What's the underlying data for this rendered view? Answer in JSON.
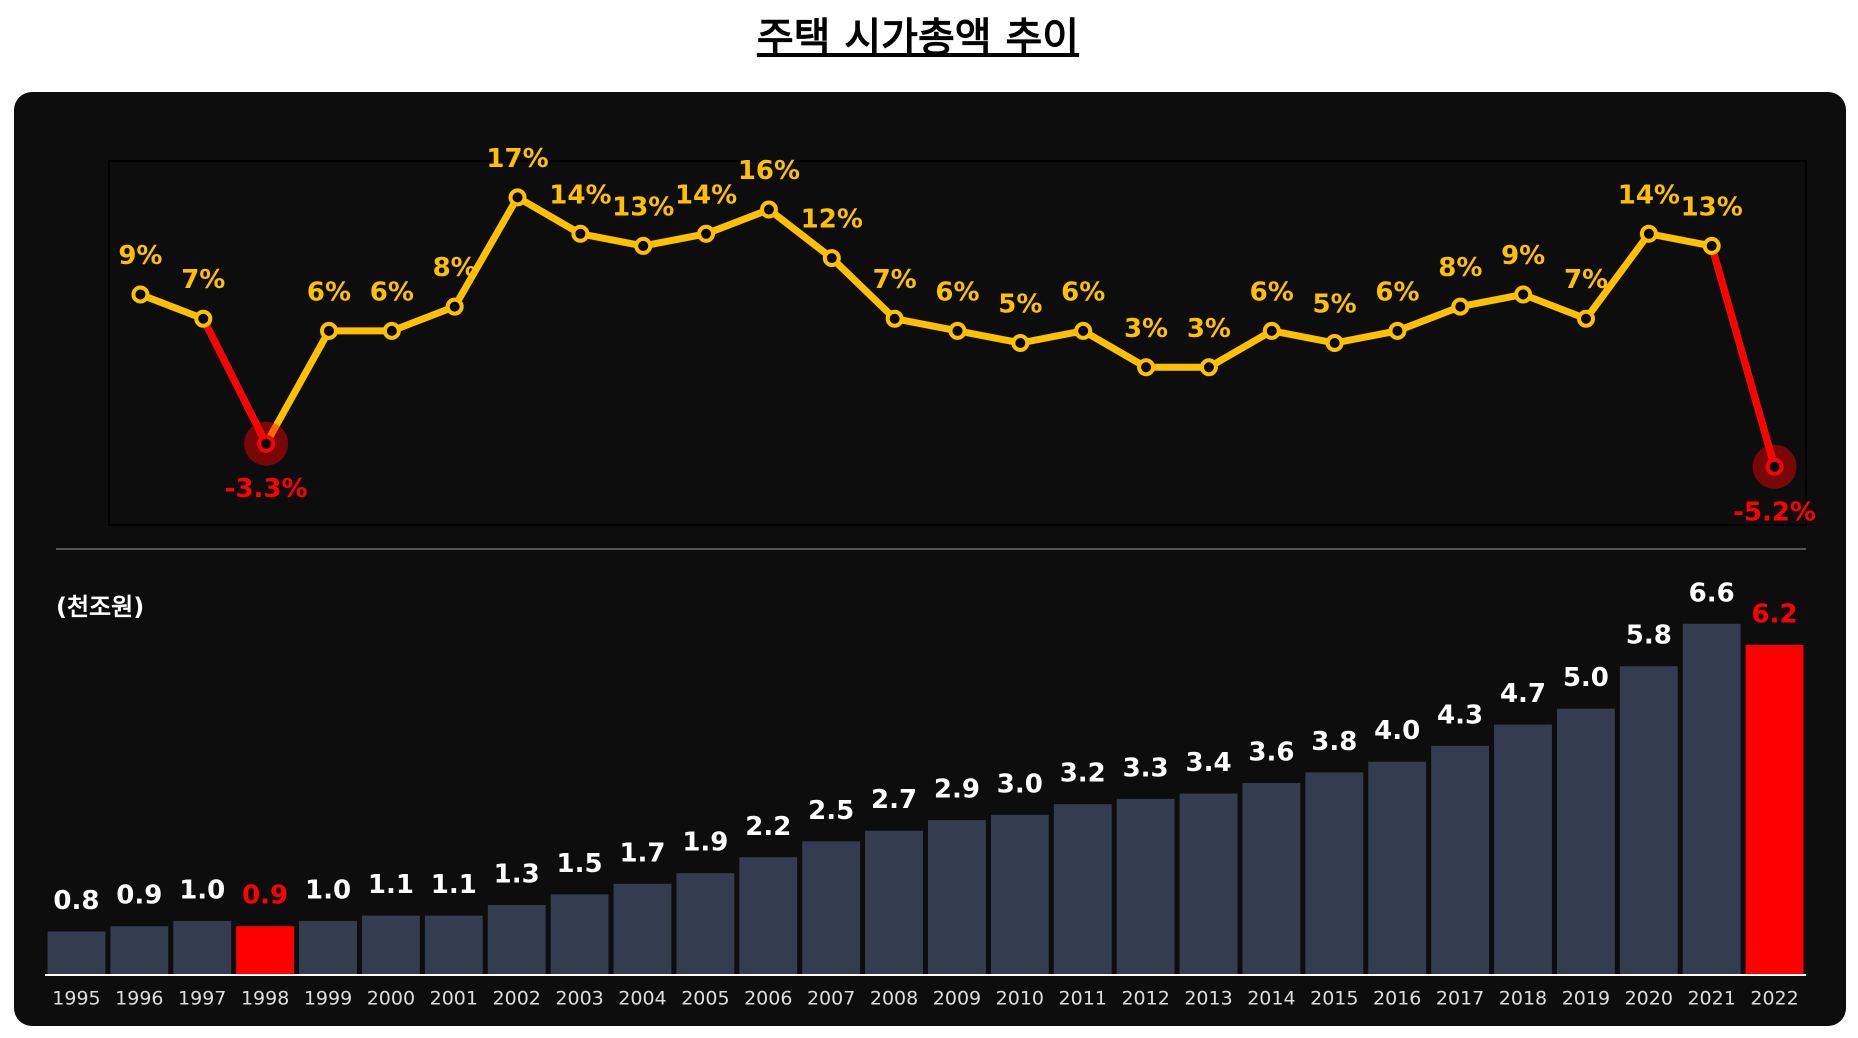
{
  "title": "주택 시가총액 추이",
  "chart_data": [
    {
      "type": "line",
      "values": [
        9,
        7,
        -3.3,
        6,
        6,
        8,
        17,
        14,
        13,
        14,
        16,
        12,
        7,
        6,
        5,
        6,
        3,
        3,
        6,
        5,
        6,
        8,
        9,
        7,
        14,
        13,
        -5.2
      ],
      "value_labels": [
        "9%",
        "7%",
        "-3.3%",
        "6%",
        "6%",
        "8%",
        "17%",
        "14%",
        "13%",
        "14%",
        "16%",
        "12%",
        "7%",
        "6%",
        "5%",
        "6%",
        "3%",
        "3%",
        "6%",
        "5%",
        "6%",
        "8%",
        "9%",
        "7%",
        "14%",
        "13%",
        "-5.2%"
      ],
      "color": "#ffc000",
      "colors": [
        "#ffc000",
        "#ffc000",
        "#ff0000",
        "#ffc000",
        "#ffc000",
        "#ffc000",
        "#ffc000",
        "#ffc000",
        "#ffc000",
        "#ffc000",
        "#ffc000",
        "#ffc000",
        "#ffc000",
        "#ffc000",
        "#ffc000",
        "#ffc000",
        "#ffc000",
        "#ffc000",
        "#ffc000",
        "#ffc000",
        "#ffc000",
        "#ffc000",
        "#ffc000",
        "#ffc000",
        "#ffc000",
        "#ffc000",
        "#ff0000"
      ],
      "ylim": [
        -10,
        20
      ]
    },
    {
      "type": "bar",
      "ylabel": "(천조원)",
      "categories": [
        "1995",
        "1996",
        "1997",
        "1998",
        "1999",
        "2000",
        "2001",
        "2002",
        "2003",
        "2004",
        "2005",
        "2006",
        "2007",
        "2008",
        "2009",
        "2010",
        "2011",
        "2012",
        "2013",
        "2014",
        "2015",
        "2016",
        "2017",
        "2018",
        "2019",
        "2020",
        "2021",
        "2022"
      ],
      "values": [
        0.8,
        0.9,
        1.0,
        0.9,
        1.0,
        1.1,
        1.1,
        1.3,
        1.5,
        1.7,
        1.9,
        2.2,
        2.5,
        2.7,
        2.9,
        3.0,
        3.2,
        3.3,
        3.4,
        3.6,
        3.8,
        4.0,
        4.3,
        4.7,
        5.0,
        5.8,
        6.6,
        6.2
      ],
      "value_labels": [
        "0.8",
        "0.9",
        "1.0",
        "0.9",
        "1.0",
        "1.1",
        "1.1",
        "1.3",
        "1.5",
        "1.7",
        "1.9",
        "2.2",
        "2.5",
        "2.7",
        "2.9",
        "3.0",
        "3.2",
        "3.3",
        "3.4",
        "3.6",
        "3.8",
        "4.0",
        "4.3",
        "4.7",
        "5.0",
        "5.8",
        "6.6",
        "6.2"
      ],
      "color": "#333d4f",
      "colors": [
        "#333d4f",
        "#333d4f",
        "#333d4f",
        "#ff0000",
        "#333d4f",
        "#333d4f",
        "#333d4f",
        "#333d4f",
        "#333d4f",
        "#333d4f",
        "#333d4f",
        "#333d4f",
        "#333d4f",
        "#333d4f",
        "#333d4f",
        "#333d4f",
        "#333d4f",
        "#333d4f",
        "#333d4f",
        "#333d4f",
        "#333d4f",
        "#333d4f",
        "#333d4f",
        "#333d4f",
        "#333d4f",
        "#333d4f",
        "#333d4f",
        "#ff0000"
      ],
      "ylim": [
        0,
        7.5
      ]
    }
  ]
}
